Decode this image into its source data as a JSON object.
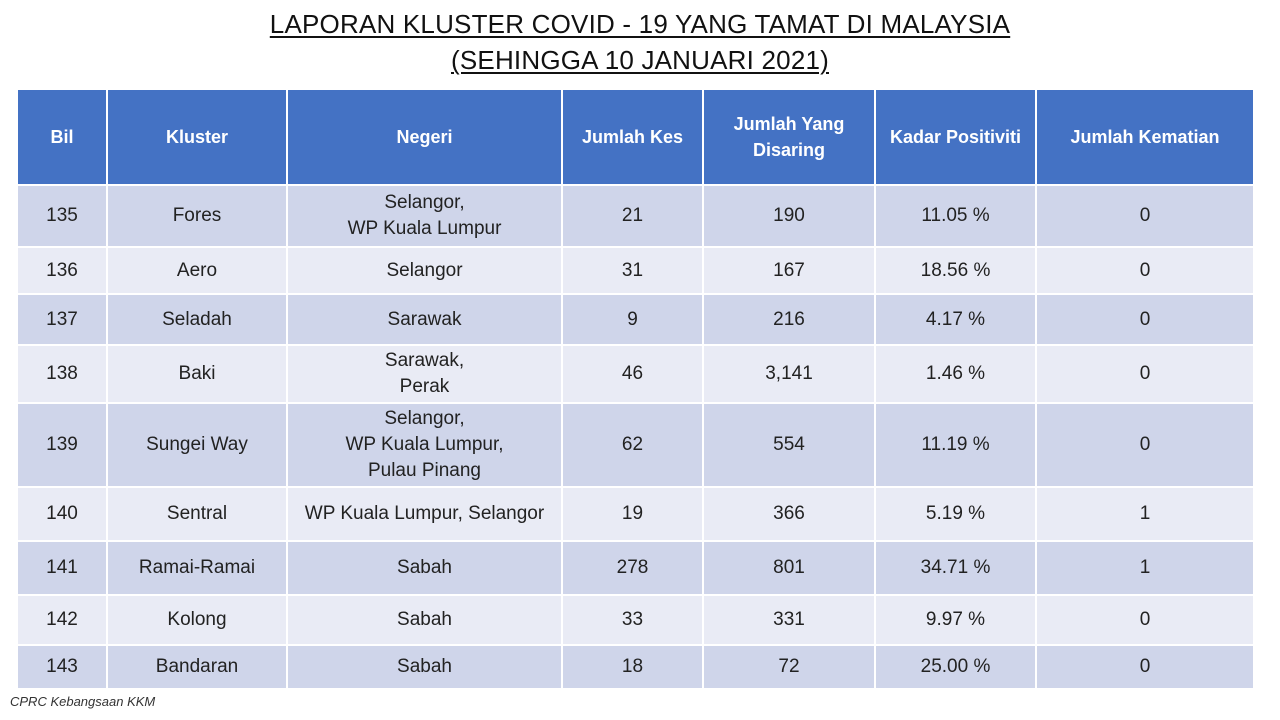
{
  "title": {
    "line1": "LAPORAN KLUSTER COVID - 19 YANG TAMAT DI MALAYSIA",
    "line2": "(SEHINGGA 10 JANUARI 2021)"
  },
  "table": {
    "headers": [
      "Bil",
      "Kluster",
      "Negeri",
      "Jumlah Kes",
      "Jumlah Yang Disaring",
      "Kadar Positiviti",
      "Jumlah Kematian"
    ],
    "rows": [
      {
        "bil": "135",
        "kluster": "Fores",
        "negeri": [
          "Selangor,",
          "WP Kuala Lumpur"
        ],
        "kes": "21",
        "disaring": "190",
        "positiviti": "11.05 %",
        "kematian": "0"
      },
      {
        "bil": "136",
        "kluster": "Aero",
        "negeri": [
          "Selangor"
        ],
        "kes": "31",
        "disaring": "167",
        "positiviti": "18.56 %",
        "kematian": "0"
      },
      {
        "bil": "137",
        "kluster": "Seladah",
        "negeri": [
          "Sarawak"
        ],
        "kes": "9",
        "disaring": "216",
        "positiviti": "4.17 %",
        "kematian": "0"
      },
      {
        "bil": "138",
        "kluster": "Baki",
        "negeri": [
          "Sarawak,",
          "Perak"
        ],
        "kes": "46",
        "disaring": "3,141",
        "positiviti": "1.46 %",
        "kematian": "0"
      },
      {
        "bil": "139",
        "kluster": "Sungei Way",
        "negeri": [
          "Selangor,",
          "WP Kuala Lumpur,",
          "Pulau Pinang"
        ],
        "kes": "62",
        "disaring": "554",
        "positiviti": "11.19 %",
        "kematian": "0"
      },
      {
        "bil": "140",
        "kluster": "Sentral",
        "negeri": [
          "WP Kuala Lumpur, Selangor"
        ],
        "kes": "19",
        "disaring": "366",
        "positiviti": "5.19 %",
        "kematian": "1"
      },
      {
        "bil": "141",
        "kluster": "Ramai-Ramai",
        "negeri": [
          "Sabah"
        ],
        "kes": "278",
        "disaring": "801",
        "positiviti": "34.71 %",
        "kematian": "1"
      },
      {
        "bil": "142",
        "kluster": "Kolong",
        "negeri": [
          "Sabah"
        ],
        "kes": "33",
        "disaring": "331",
        "positiviti": "9.97 %",
        "kematian": "0"
      },
      {
        "bil": "143",
        "kluster": "Bandaran",
        "negeri": [
          "Sabah"
        ],
        "kes": "18",
        "disaring": "72",
        "positiviti": "25.00 %",
        "kematian": "0"
      }
    ]
  },
  "source": "CPRC Kebangsaan KKM",
  "colors": {
    "header_bg": "#4472c4",
    "row_dark": "#cfd5ea",
    "row_light": "#e9ebf5"
  }
}
